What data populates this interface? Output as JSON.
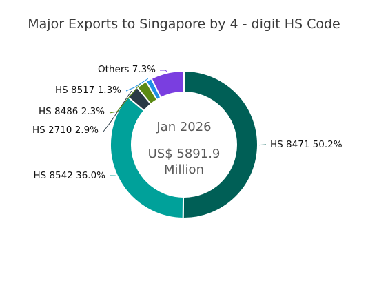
{
  "chart_data": {
    "type": "pie",
    "title": "Major Exports to Singapore by 4 - digit HS Code",
    "center_text": {
      "line1": "Jan 2026",
      "line2": "US$ 5891.9",
      "line3": "Million"
    },
    "slices": [
      {
        "label": "HS 8471 50.2%",
        "value": 50.2,
        "color": "#005f56"
      },
      {
        "label": "HS 8542 36.0%",
        "value": 36.0,
        "color": "#00a19a"
      },
      {
        "label": "HS 2710 2.9%",
        "value": 2.9,
        "color": "#2a3a46"
      },
      {
        "label": "HS 8486 2.3%",
        "value": 2.3,
        "color": "#5c8a14"
      },
      {
        "label": "HS 8517 1.3%",
        "value": 1.3,
        "color": "#1e8fe6"
      },
      {
        "label": "Others 7.3%",
        "value": 7.3,
        "color": "#7a3ee0"
      }
    ],
    "legend": "none"
  }
}
